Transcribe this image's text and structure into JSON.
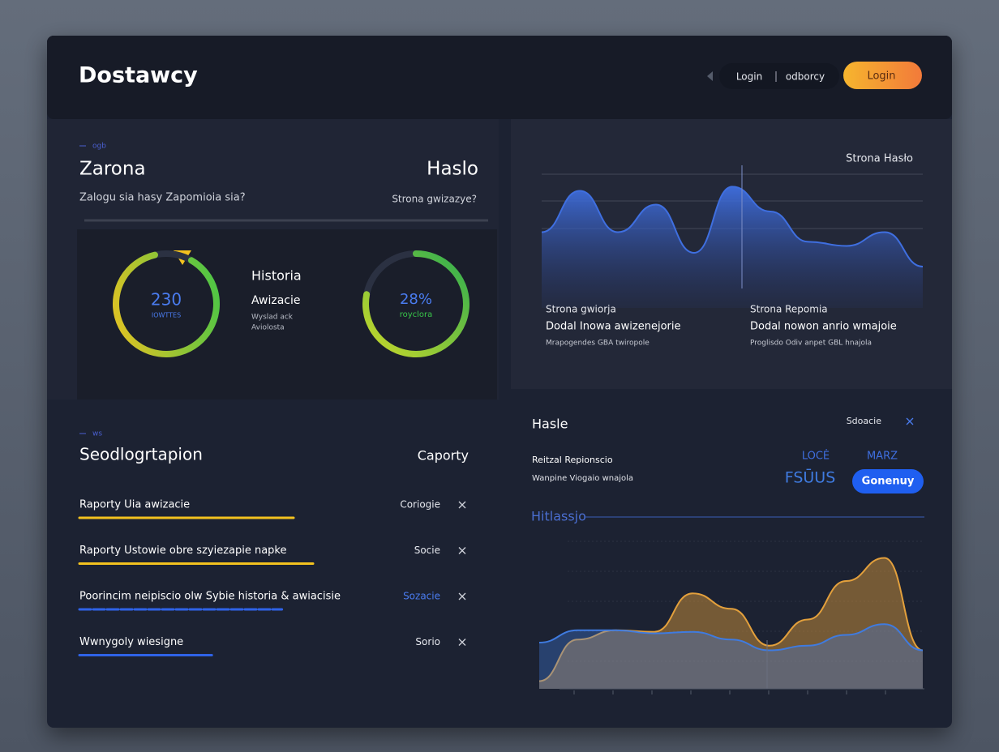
{
  "header": {
    "title": "Dostawcy",
    "nav": [
      "Login",
      "odborcy"
    ],
    "button": "Login"
  },
  "overview": {
    "caption": "ogb",
    "title": "Zarona",
    "title_right": "Haslo",
    "subtitle": "Zalogu sia hasy Zapomioia sia?",
    "subtitle_right": "Strona gwizazye?",
    "gauges": [
      {
        "label": "230",
        "sublabel": "IOWTTES",
        "fill": 88
      },
      {
        "label": "28%",
        "sublabel": "royclora",
        "fill": 78
      }
    ],
    "middle": {
      "title": "Historia",
      "subtitle": "Awizacie",
      "lines": [
        "Wyslad ack",
        "Aviolosta"
      ]
    }
  },
  "trend": {
    "label": "Strona Hasło",
    "chart": {
      "type": "area",
      "color": "#3f6fe0",
      "values": [
        55,
        85,
        55,
        75,
        40,
        88,
        70,
        48,
        45,
        55,
        30
      ],
      "ylim": [
        0,
        100
      ]
    },
    "captions": [
      [
        "Strona gwiorja",
        "Dodal Inowa awizenejorie",
        "Mrapogendes GBA twiropole"
      ],
      [
        "Strona Repomia",
        "Dodal nowon anrio wmajoie",
        "Proglisdo Odiv anpet GBL hnajola"
      ]
    ]
  },
  "reports": {
    "caption": "ws",
    "title": "Seodlogrtapion",
    "title_right": "Caporty",
    "rows": [
      {
        "text": "Raporty Uia awizacie",
        "status": "Coriogie",
        "progress": 55
      },
      {
        "text": "Raporty Ustowie obre szyiezapie napke",
        "status": "Socie",
        "progress": 60
      },
      {
        "text": "Poorincim neipiscio olw Sybie historia & awiacisie",
        "status": "Sozacie",
        "progress": 52
      },
      {
        "text": "Wwnygoly wiesigne",
        "status": "Sorio",
        "progress": 34
      }
    ]
  },
  "detail": {
    "title": "Hasle",
    "link": "Sdoacie",
    "lines": [
      "Reitzal Repionscio",
      "Wanpine Viogaio wnajola"
    ],
    "tags": [
      "LOCĖ",
      "MARZ"
    ],
    "status": "FSŪUS",
    "button": "Gonenuy",
    "chart_title": "Hitlassjo",
    "chart": {
      "type": "area",
      "ylim": [
        0,
        100
      ],
      "series": [
        {
          "color": "#e3a03c",
          "values": [
            5,
            32,
            38,
            37,
            62,
            52,
            28,
            45,
            70,
            85,
            25
          ]
        },
        {
          "color": "#3f7be0",
          "values": [
            30,
            38,
            38,
            36,
            37,
            32,
            25,
            28,
            35,
            42,
            25
          ]
        }
      ]
    }
  }
}
